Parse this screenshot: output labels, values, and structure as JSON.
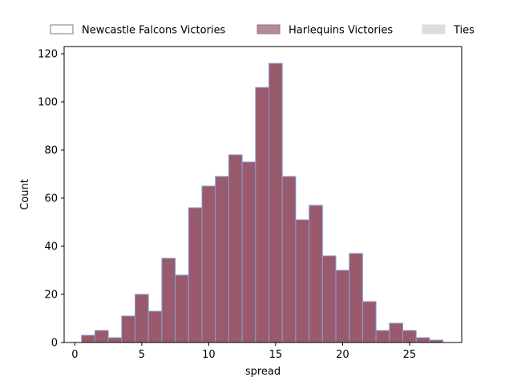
{
  "chart_data": {
    "type": "bar",
    "xlabel": "spread",
    "ylabel": "Count",
    "xlim": [
      -0.8,
      28.9
    ],
    "ylim": [
      0,
      123
    ],
    "xticks": [
      0,
      5,
      10,
      15,
      20,
      25
    ],
    "yticks": [
      0,
      20,
      40,
      60,
      80,
      100,
      120
    ],
    "grid": false,
    "legend_placement": "top",
    "legend": [
      {
        "label": "Newcastle Falcons Victories",
        "fill": "#ffffff",
        "stroke": "#777777"
      },
      {
        "label": "Harlequins Victories",
        "fill": "#b48a97",
        "stroke": "#9a7080"
      },
      {
        "label": "Ties",
        "fill": "#dddddd",
        "stroke": "#dddddd"
      }
    ],
    "bar_fill": "#985a6c",
    "bar_edge": "#8a9ed6",
    "bin_width": 1,
    "bins": [
      {
        "x0": 0.5,
        "count": 3
      },
      {
        "x0": 1.5,
        "count": 5
      },
      {
        "x0": 2.5,
        "count": 2
      },
      {
        "x0": 3.5,
        "count": 11
      },
      {
        "x0": 4.5,
        "count": 20
      },
      {
        "x0": 5.5,
        "count": 13
      },
      {
        "x0": 6.5,
        "count": 35
      },
      {
        "x0": 7.5,
        "count": 28
      },
      {
        "x0": 8.5,
        "count": 56
      },
      {
        "x0": 9.5,
        "count": 65
      },
      {
        "x0": 10.5,
        "count": 69
      },
      {
        "x0": 11.5,
        "count": 78
      },
      {
        "x0": 12.5,
        "count": 75
      },
      {
        "x0": 13.5,
        "count": 106
      },
      {
        "x0": 14.5,
        "count": 116
      },
      {
        "x0": 15.5,
        "count": 69
      },
      {
        "x0": 16.5,
        "count": 51
      },
      {
        "x0": 17.5,
        "count": 57
      },
      {
        "x0": 18.5,
        "count": 36
      },
      {
        "x0": 19.5,
        "count": 30
      },
      {
        "x0": 20.5,
        "count": 37
      },
      {
        "x0": 21.5,
        "count": 17
      },
      {
        "x0": 22.5,
        "count": 5
      },
      {
        "x0": 23.5,
        "count": 8
      },
      {
        "x0": 24.5,
        "count": 5
      },
      {
        "x0": 25.5,
        "count": 2
      },
      {
        "x0": 26.5,
        "count": 1
      }
    ]
  }
}
